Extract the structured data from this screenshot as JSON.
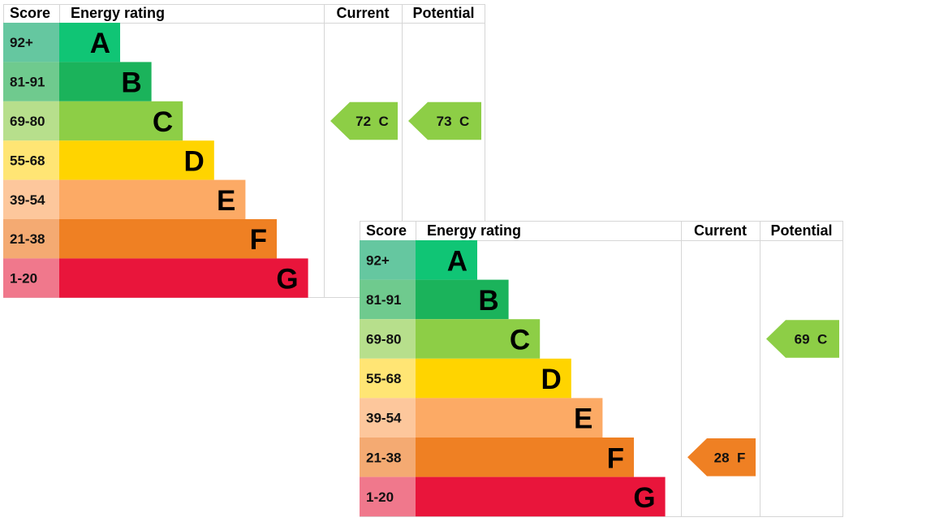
{
  "chart_data": [
    {
      "type": "table",
      "headers": {
        "score": "Score",
        "rating": "Energy rating",
        "current": "Current",
        "potential": "Potential"
      },
      "bands": [
        {
          "score": "92+",
          "letter": "A",
          "color": "#10c575",
          "score_bg": "#65c7a0"
        },
        {
          "score": "81-91",
          "letter": "B",
          "color": "#1bb35b",
          "score_bg": "#6fca8e"
        },
        {
          "score": "69-80",
          "letter": "C",
          "color": "#8dce46",
          "score_bg": "#b7df8c"
        },
        {
          "score": "55-68",
          "letter": "D",
          "color": "#ffd400",
          "score_bg": "#ffe574"
        },
        {
          "score": "39-54",
          "letter": "E",
          "color": "#fcaa65",
          "score_bg": "#fdc79c"
        },
        {
          "score": "21-38",
          "letter": "F",
          "color": "#ef8023",
          "score_bg": "#f4aa72"
        },
        {
          "score": "1-20",
          "letter": "G",
          "color": "#e9153b",
          "score_bg": "#f0788c"
        }
      ],
      "current": {
        "value": 72,
        "band": "C",
        "label": "72 C",
        "color": "#8dce46"
      },
      "potential": {
        "value": 73,
        "band": "C",
        "label": "73 C",
        "color": "#8dce46"
      }
    },
    {
      "type": "table",
      "headers": {
        "score": "Score",
        "rating": "Energy rating",
        "current": "Current",
        "potential": "Potential"
      },
      "bands": [
        {
          "score": "92+",
          "letter": "A",
          "color": "#10c575",
          "score_bg": "#65c7a0"
        },
        {
          "score": "81-91",
          "letter": "B",
          "color": "#1bb35b",
          "score_bg": "#6fca8e"
        },
        {
          "score": "69-80",
          "letter": "C",
          "color": "#8dce46",
          "score_bg": "#b7df8c"
        },
        {
          "score": "55-68",
          "letter": "D",
          "color": "#ffd400",
          "score_bg": "#ffe574"
        },
        {
          "score": "39-54",
          "letter": "E",
          "color": "#fcaa65",
          "score_bg": "#fdc79c"
        },
        {
          "score": "21-38",
          "letter": "F",
          "color": "#ef8023",
          "score_bg": "#f4aa72"
        },
        {
          "score": "1-20",
          "letter": "G",
          "color": "#e9153b",
          "score_bg": "#f0788c"
        }
      ],
      "current": {
        "value": 28,
        "band": "F",
        "label": "28 F",
        "color": "#ef8023"
      },
      "potential": {
        "value": 69,
        "band": "C",
        "label": "69 C",
        "color": "#8dce46"
      }
    }
  ]
}
